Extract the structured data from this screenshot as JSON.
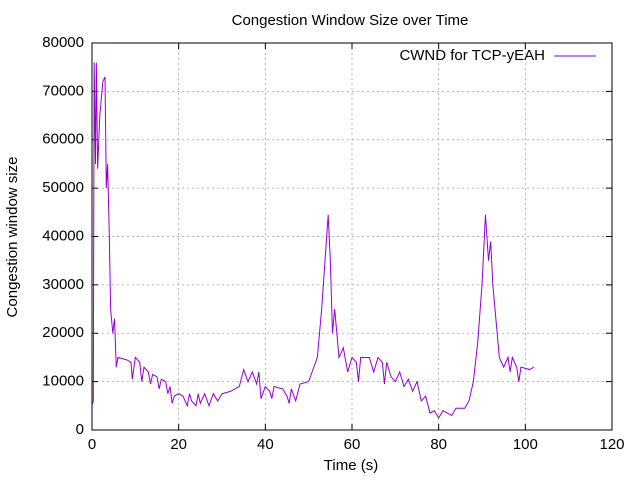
{
  "chart_data": {
    "type": "line",
    "title": "Congestion Window Size over Time",
    "x_label": "Time (s)",
    "y_label": "Congestion window size",
    "xlim": [
      0,
      120
    ],
    "xticks": [
      0,
      20,
      40,
      60,
      80,
      100,
      120
    ],
    "ylim": [
      0,
      80000
    ],
    "yticks": [
      0,
      10000,
      20000,
      30000,
      40000,
      50000,
      60000,
      70000,
      80000
    ],
    "grid": true,
    "legend": "top-right",
    "x": [
      0,
      0.3,
      0.5,
      0.8,
      1,
      1.3,
      1.8,
      2.5,
      3,
      3.3,
      3.6,
      4,
      4.3,
      4.8,
      5.2,
      5.6,
      6,
      8,
      9,
      9.3,
      10,
      11,
      11.5,
      12,
      13,
      13.5,
      14,
      15,
      15.5,
      16,
      17,
      17.5,
      18,
      18.5,
      19,
      20,
      21,
      22,
      22.5,
      23,
      24,
      24.5,
      25,
      26,
      27,
      28,
      29,
      30,
      32,
      34,
      35,
      36,
      37,
      38,
      38.5,
      39,
      40,
      41,
      41.5,
      42,
      44,
      45,
      45.5,
      46,
      47,
      48,
      50,
      52,
      53,
      54,
      54.5,
      55,
      55.5,
      56,
      57,
      58,
      59,
      60,
      61,
      61.5,
      62,
      64,
      65,
      66,
      67,
      67.5,
      68,
      69,
      70,
      71,
      72,
      73,
      74,
      75,
      76,
      77,
      78,
      79,
      80,
      81,
      82,
      83,
      84,
      86,
      87,
      88,
      89,
      90,
      90.8,
      91.5,
      92,
      92.5,
      93,
      94,
      95,
      96,
      96.5,
      97,
      98,
      98.5,
      99,
      101,
      102
    ],
    "series": [
      {
        "name": "CWND for TCP-yEAH",
        "color": "#9400d3",
        "values": [
          5000,
          6000,
          76000,
          55000,
          76000,
          54000,
          65000,
          72000,
          73000,
          50000,
          55000,
          40000,
          25000,
          20000,
          23000,
          13000,
          15000,
          14500,
          14000,
          10500,
          15000,
          14000,
          10000,
          13000,
          12000,
          9500,
          11500,
          11000,
          8500,
          10500,
          10000,
          7500,
          9000,
          5500,
          7000,
          7500,
          7000,
          5000,
          7500,
          6000,
          5000,
          7500,
          5500,
          7500,
          5000,
          7500,
          6000,
          7500,
          8000,
          9000,
          12500,
          10000,
          12000,
          9500,
          12000,
          6500,
          9000,
          8000,
          6500,
          9000,
          8500,
          7000,
          5500,
          8500,
          6000,
          9500,
          10000,
          15000,
          25000,
          38000,
          44500,
          35000,
          20000,
          25000,
          15000,
          17000,
          12000,
          15000,
          14000,
          10000,
          15000,
          15000,
          12000,
          15000,
          14000,
          9500,
          14000,
          11000,
          10000,
          12000,
          9000,
          10500,
          8000,
          10000,
          6000,
          7000,
          3500,
          4000,
          2500,
          4000,
          3500,
          3000,
          4500,
          4500,
          6000,
          10000,
          18000,
          30000,
          44500,
          35000,
          39000,
          30000,
          25000,
          15000,
          13000,
          15000,
          12000,
          15000,
          13000,
          10000,
          13000,
          12500,
          13000
        ]
      }
    ]
  }
}
